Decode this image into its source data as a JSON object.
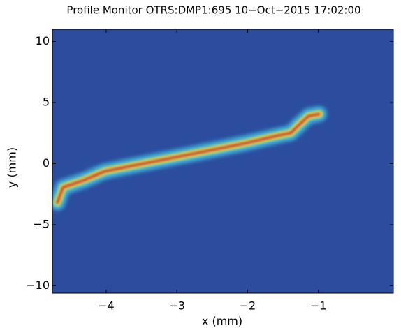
{
  "chart_data": {
    "type": "heatmap",
    "title": "Profile Monitor OTRS:DMP1:695 10−Oct−2015 17:02:00",
    "x_label": "x (mm)",
    "y_label": "y (mm)",
    "xlim": [
      -4.76,
      0.06
    ],
    "ylim": [
      -10.6,
      11.0
    ],
    "xticks": [
      {
        "value": -4,
        "label": "−4"
      },
      {
        "value": -3,
        "label": "−3"
      },
      {
        "value": -2,
        "label": "−2"
      },
      {
        "value": -1,
        "label": "−1"
      }
    ],
    "yticks": [
      {
        "value": -10,
        "label": "−10"
      },
      {
        "value": -5,
        "label": "−5"
      },
      0,
      5,
      10
    ],
    "x": [
      -4.69,
      -4.61,
      -4.32,
      -4.02,
      -3.53,
      -3.03,
      -2.53,
      -2.04,
      -1.54,
      -1.39,
      -1.29,
      -1.14,
      -0.99
    ],
    "y": [
      -3.2,
      -1.94,
      -1.37,
      -0.63,
      -0.06,
      0.51,
      1.09,
      1.66,
      2.34,
      2.51,
      3.09,
      3.89,
      4.06
    ],
    "background": "#2c4d9e",
    "colors": [
      "#3fc4e8",
      "#f5e33a",
      "#d4201c"
    ]
  }
}
